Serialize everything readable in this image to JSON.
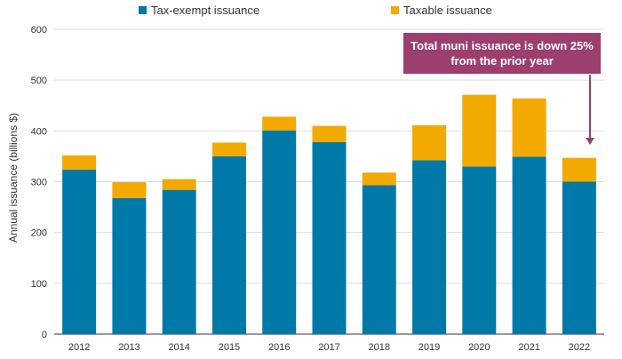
{
  "chart_data": {
    "type": "bar",
    "stacked": true,
    "categories": [
      "2012",
      "2013",
      "2014",
      "2015",
      "2016",
      "2017",
      "2018",
      "2019",
      "2020",
      "2021",
      "2022"
    ],
    "series": [
      {
        "name": "Tax-exempt issuance",
        "color": "#0079a9",
        "values": [
          324,
          268,
          284,
          350,
          401,
          378,
          293,
          342,
          330,
          349,
          300
        ]
      },
      {
        "name": "Taxable issuance",
        "color": "#f2a900",
        "values": [
          28,
          31,
          21,
          27,
          27,
          32,
          25,
          69,
          141,
          115,
          47
        ]
      }
    ],
    "ylabel": "Annual issuance (billions $)",
    "ylim": [
      0,
      600
    ],
    "yticks": [
      0,
      100,
      200,
      300,
      400,
      500,
      600
    ],
    "grid": true,
    "legend": "top",
    "annotation": {
      "text": "Total muni issuance is down 25% from the prior year",
      "target_category": "2022",
      "color": "#9c3e6e"
    }
  }
}
